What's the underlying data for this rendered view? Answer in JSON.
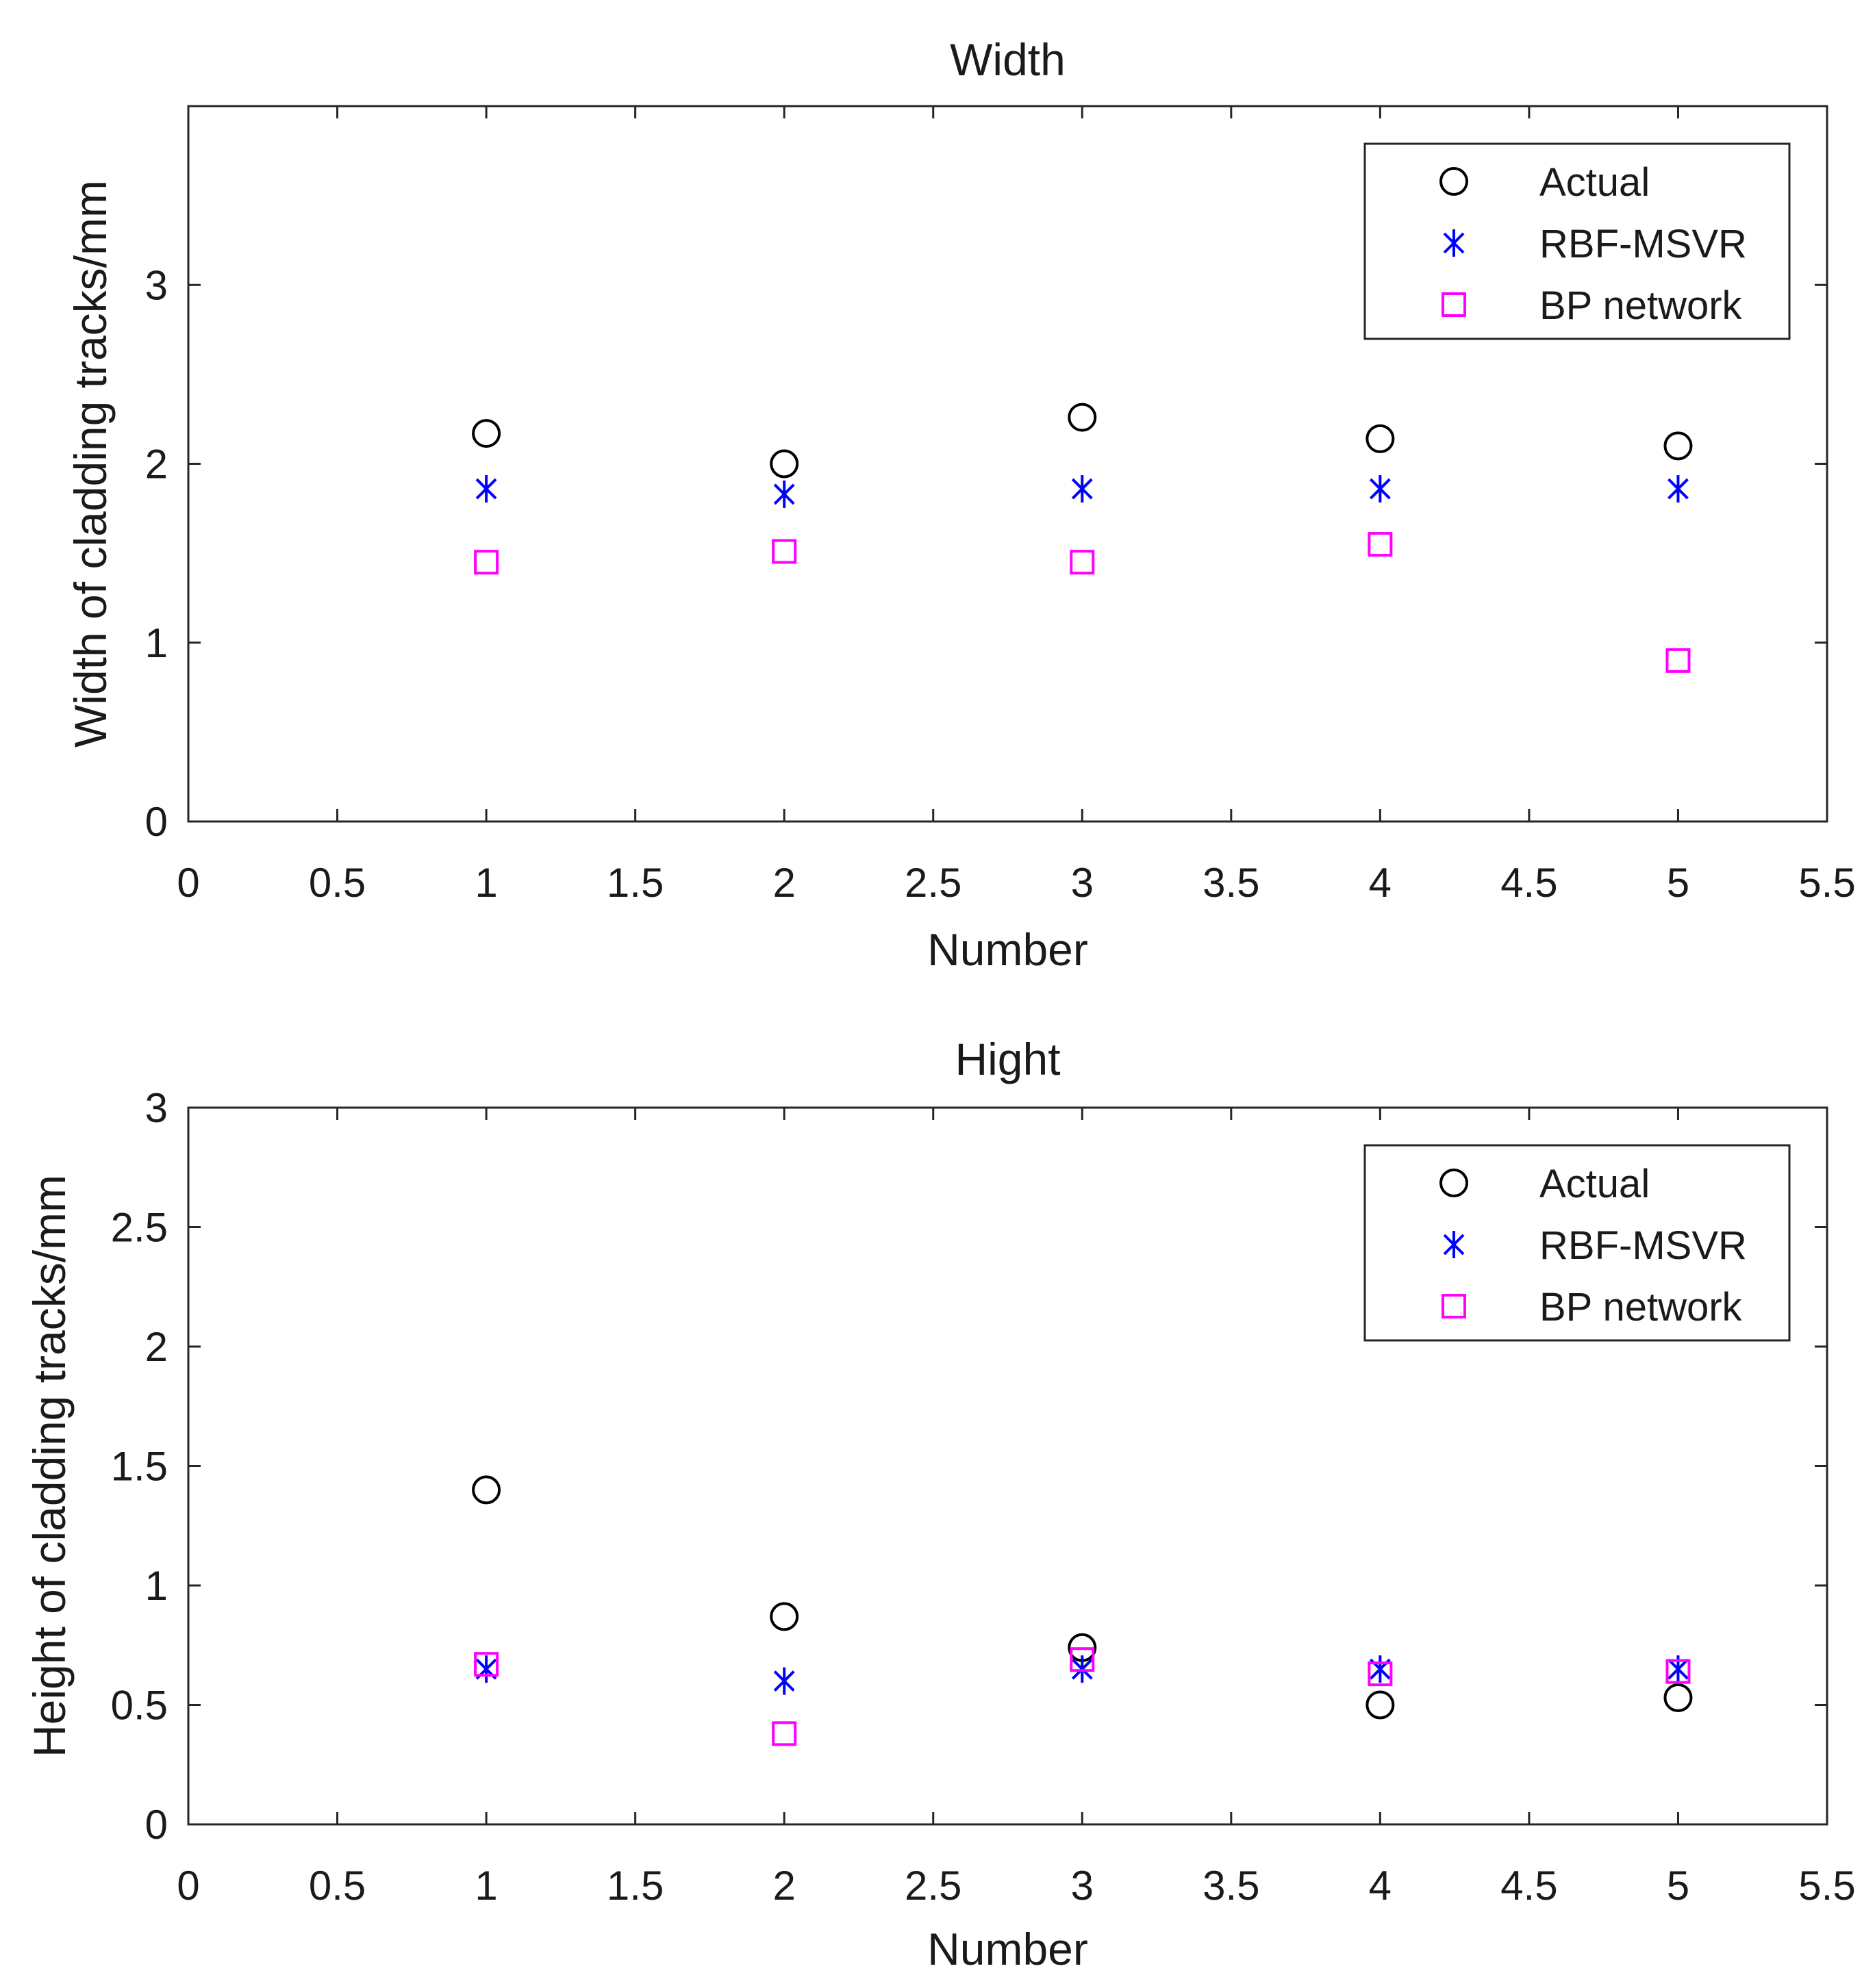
{
  "chart_data": [
    {
      "type": "scatter",
      "title": "Width",
      "xlabel": "Number",
      "ylabel": "Width of cladding tracks/mm",
      "xlim": [
        0,
        5.5
      ],
      "ylim": [
        0,
        4
      ],
      "grid": false,
      "xticks": [
        "0",
        "0.5",
        "1",
        "1.5",
        "2",
        "2.5",
        "3",
        "3.5",
        "4",
        "4.5",
        "5",
        "5.5"
      ],
      "yticks": [
        "0",
        "1",
        "2",
        "3"
      ],
      "legend_position": "top-right",
      "x": [
        1,
        2,
        3,
        4,
        5
      ],
      "series": [
        {
          "name": "Actual",
          "marker": "circle",
          "color": "#000000",
          "values": [
            2.17,
            2.0,
            2.26,
            2.14,
            2.1
          ]
        },
        {
          "name": "RBF-MSVR",
          "marker": "asterisk",
          "color": "#0000ff",
          "values": [
            1.86,
            1.83,
            1.86,
            1.86,
            1.86
          ]
        },
        {
          "name": "BP network",
          "marker": "square",
          "color": "#ff00ff",
          "values": [
            1.45,
            1.51,
            1.45,
            1.55,
            0.9
          ]
        }
      ]
    },
    {
      "type": "scatter",
      "title": "Hight",
      "xlabel": "Number",
      "ylabel": "Height of cladding tracks/mm",
      "xlim": [
        0,
        5.5
      ],
      "ylim": [
        0,
        3
      ],
      "grid": false,
      "xticks": [
        "0",
        "0.5",
        "1",
        "1.5",
        "2",
        "2.5",
        "3",
        "3.5",
        "4",
        "4.5",
        "5",
        "5.5"
      ],
      "yticks": [
        "0",
        "0.5",
        "1",
        "1.5",
        "2",
        "2.5",
        "3"
      ],
      "legend_position": "top-right",
      "x": [
        1,
        2,
        3,
        4,
        5
      ],
      "series": [
        {
          "name": "Actual",
          "marker": "circle",
          "color": "#000000",
          "values": [
            1.4,
            0.87,
            0.74,
            0.5,
            0.53
          ]
        },
        {
          "name": "RBF-MSVR",
          "marker": "asterisk",
          "color": "#0000ff",
          "values": [
            0.65,
            0.6,
            0.65,
            0.65,
            0.65
          ]
        },
        {
          "name": "BP network",
          "marker": "square",
          "color": "#ff00ff",
          "values": [
            0.67,
            0.38,
            0.69,
            0.63,
            0.64
          ]
        }
      ]
    }
  ]
}
